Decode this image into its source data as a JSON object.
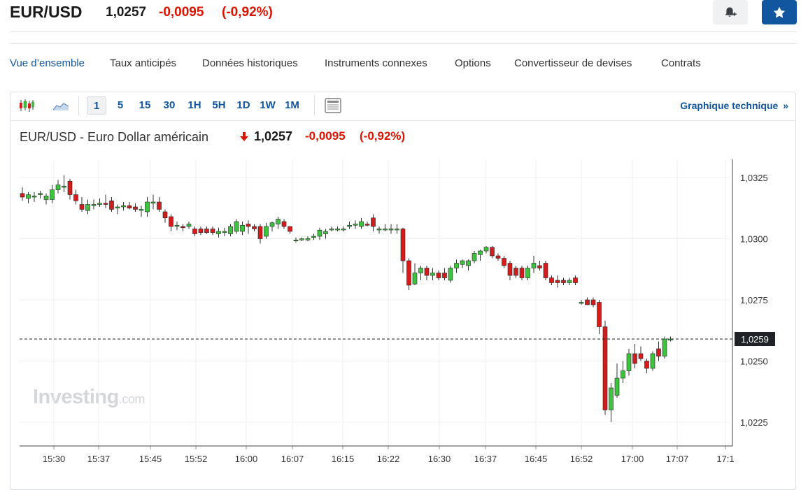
{
  "header": {
    "pair": "EUR/USD",
    "last": "1,0257",
    "change": "-0,0095",
    "change_pct": "(-0,92%)",
    "alert_icon": "bell-plus-icon",
    "watchlist_icon": "star-icon"
  },
  "tabs": [
    "Vue d’ensemble",
    "Taux anticipés",
    "Données historiques",
    "Instruments connexes",
    "Options",
    "Convertisseur de devises",
    "Contrats"
  ],
  "toolbar": {
    "candles_icon": "candlestick-icon",
    "area_icon": "area-chart-icon",
    "timeframes": [
      "1",
      "5",
      "15",
      "30",
      "1H",
      "5H",
      "1D",
      "1W",
      "1M"
    ],
    "active_timeframe": "1",
    "table_icon": "table-view-icon",
    "tech_link": "Graphique technique",
    "tech_link_chevron": "»"
  },
  "chart_header": {
    "title": "EUR/USD - Euro Dollar américain",
    "last": "1,0257",
    "change": "-0,0095",
    "change_pct": "(-0,92%)",
    "arrow_icon": "down-arrow-icon"
  },
  "watermark": {
    "brand": "Investing",
    "suffix": ".com"
  },
  "colors": {
    "up": "#3ec33e",
    "down": "#d51c1c",
    "accent": "#1256a0",
    "negative_text": "#d91400"
  },
  "chart_data": {
    "type": "candlestick",
    "title": "EUR/USD - Euro Dollar américain",
    "interval": "1 minute",
    "x_tick_labels": [
      "15:30",
      "15:37",
      "15:45",
      "15:52",
      "16:00",
      "16:07",
      "16:15",
      "16:22",
      "16:30",
      "16:37",
      "16:45",
      "16:52",
      "17:00",
      "17:07",
      "17:1"
    ],
    "y_tick_labels": [
      "1,0325",
      "1,0300",
      "1,0275",
      "1,0250",
      "1,0225"
    ],
    "ylim": [
      1.0215,
      1.0335
    ],
    "current_price_label": "1,0259",
    "current_price": 1.0259,
    "grid": true,
    "candles": [
      {
        "t": "15:25",
        "o": 1.03185,
        "h": 1.0321,
        "l": 1.03155,
        "c": 1.0317
      },
      {
        "t": "15:26",
        "o": 1.03165,
        "h": 1.0319,
        "l": 1.03145,
        "c": 1.0318
      },
      {
        "t": "15:27",
        "o": 1.0317,
        "h": 1.0319,
        "l": 1.0315,
        "c": 1.03175
      },
      {
        "t": "15:28",
        "o": 1.0318,
        "h": 1.03195,
        "l": 1.03165,
        "c": 1.03185
      },
      {
        "t": "15:29",
        "o": 1.0316,
        "h": 1.03185,
        "l": 1.0314,
        "c": 1.03175
      },
      {
        "t": "15:30",
        "o": 1.0316,
        "h": 1.0322,
        "l": 1.03145,
        "c": 1.032
      },
      {
        "t": "15:31",
        "o": 1.032,
        "h": 1.0324,
        "l": 1.03185,
        "c": 1.0322
      },
      {
        "t": "15:32",
        "o": 1.0321,
        "h": 1.0326,
        "l": 1.0319,
        "c": 1.03215
      },
      {
        "t": "15:33",
        "o": 1.03235,
        "h": 1.03245,
        "l": 1.0316,
        "c": 1.0318
      },
      {
        "t": "15:34",
        "o": 1.0318,
        "h": 1.032,
        "l": 1.0314,
        "c": 1.03155
      },
      {
        "t": "15:35",
        "o": 1.0314,
        "h": 1.0317,
        "l": 1.0311,
        "c": 1.0312
      },
      {
        "t": "15:36",
        "o": 1.03115,
        "h": 1.0316,
        "l": 1.031,
        "c": 1.0314
      },
      {
        "t": "15:37",
        "o": 1.03135,
        "h": 1.0316,
        "l": 1.0312,
        "c": 1.0314
      },
      {
        "t": "15:38",
        "o": 1.0314,
        "h": 1.03165,
        "l": 1.0313,
        "c": 1.03145
      },
      {
        "t": "15:39",
        "o": 1.03145,
        "h": 1.0318,
        "l": 1.03125,
        "c": 1.0314
      },
      {
        "t": "15:40",
        "o": 1.03155,
        "h": 1.0317,
        "l": 1.0311,
        "c": 1.0312
      },
      {
        "t": "15:41",
        "o": 1.03125,
        "h": 1.0314,
        "l": 1.031,
        "c": 1.0313
      },
      {
        "t": "15:42",
        "o": 1.0313,
        "h": 1.0315,
        "l": 1.03115,
        "c": 1.03135
      },
      {
        "t": "15:43",
        "o": 1.03135,
        "h": 1.0315,
        "l": 1.0312,
        "c": 1.03125
      },
      {
        "t": "15:44",
        "o": 1.0313,
        "h": 1.03145,
        "l": 1.0311,
        "c": 1.0312
      },
      {
        "t": "15:45",
        "o": 1.0312,
        "h": 1.03135,
        "l": 1.0309,
        "c": 1.0312
      },
      {
        "t": "15:46",
        "o": 1.0311,
        "h": 1.0317,
        "l": 1.0309,
        "c": 1.0315
      },
      {
        "t": "15:47",
        "o": 1.03145,
        "h": 1.0318,
        "l": 1.0312,
        "c": 1.0315
      },
      {
        "t": "15:48",
        "o": 1.0315,
        "h": 1.0317,
        "l": 1.0311,
        "c": 1.0312
      },
      {
        "t": "15:49",
        "o": 1.0311,
        "h": 1.0312,
        "l": 1.03065,
        "c": 1.03085
      },
      {
        "t": "15:50",
        "o": 1.0309,
        "h": 1.031,
        "l": 1.0303,
        "c": 1.0305
      },
      {
        "t": "15:51",
        "o": 1.03055,
        "h": 1.0307,
        "l": 1.03035,
        "c": 1.03055
      },
      {
        "t": "15:52",
        "o": 1.0305,
        "h": 1.0306,
        "l": 1.0303,
        "c": 1.03045
      },
      {
        "t": "15:53",
        "o": 1.0305,
        "h": 1.0307,
        "l": 1.0304,
        "c": 1.0306
      },
      {
        "t": "15:54",
        "o": 1.0304,
        "h": 1.0305,
        "l": 1.0301,
        "c": 1.0302
      },
      {
        "t": "15:55",
        "o": 1.0304,
        "h": 1.0305,
        "l": 1.03015,
        "c": 1.03025
      },
      {
        "t": "15:56",
        "o": 1.0304,
        "h": 1.0305,
        "l": 1.0302,
        "c": 1.03025
      },
      {
        "t": "15:57",
        "o": 1.0304,
        "h": 1.0305,
        "l": 1.03015,
        "c": 1.03025
      },
      {
        "t": "15:58",
        "o": 1.0302,
        "h": 1.03045,
        "l": 1.03005,
        "c": 1.0303
      },
      {
        "t": "15:59",
        "o": 1.03025,
        "h": 1.03045,
        "l": 1.0301,
        "c": 1.0303
      },
      {
        "t": "16:00",
        "o": 1.0302,
        "h": 1.0306,
        "l": 1.0301,
        "c": 1.0305
      },
      {
        "t": "16:01",
        "o": 1.0303,
        "h": 1.0308,
        "l": 1.0302,
        "c": 1.0307
      },
      {
        "t": "16:02",
        "o": 1.0303,
        "h": 1.0307,
        "l": 1.03015,
        "c": 1.03055
      },
      {
        "t": "16:03",
        "o": 1.0306,
        "h": 1.03075,
        "l": 1.0302,
        "c": 1.0305
      },
      {
        "t": "16:04",
        "o": 1.0305,
        "h": 1.0306,
        "l": 1.0303,
        "c": 1.0304
      },
      {
        "t": "16:05",
        "o": 1.0305,
        "h": 1.0306,
        "l": 1.0298,
        "c": 1.03
      },
      {
        "t": "16:06",
        "o": 1.0301,
        "h": 1.03065,
        "l": 1.03,
        "c": 1.0305
      },
      {
        "t": "16:07",
        "o": 1.0305,
        "h": 1.0307,
        "l": 1.0303,
        "c": 1.03065
      },
      {
        "t": "16:08",
        "o": 1.0306,
        "h": 1.0309,
        "l": 1.0304,
        "c": 1.0308
      },
      {
        "t": "16:09",
        "o": 1.0307,
        "h": 1.0308,
        "l": 1.0304,
        "c": 1.0305
      },
      {
        "t": "16:10",
        "o": 1.0305,
        "h": 1.0305,
        "l": 1.0302,
        "c": 1.0303
      },
      {
        "t": "16:11",
        "o": 1.02995,
        "h": 1.03005,
        "l": 1.02985,
        "c": 1.02995
      },
      {
        "t": "16:12",
        "o": 1.02995,
        "h": 1.03005,
        "l": 1.0299,
        "c": 1.03
      },
      {
        "t": "16:13",
        "o": 1.02995,
        "h": 1.0301,
        "l": 1.0299,
        "c": 1.03
      },
      {
        "t": "16:14",
        "o": 1.03005,
        "h": 1.0302,
        "l": 1.02995,
        "c": 1.0301
      },
      {
        "t": "16:15",
        "o": 1.0301,
        "h": 1.03045,
        "l": 1.02995,
        "c": 1.03035
      },
      {
        "t": "16:16",
        "o": 1.0302,
        "h": 1.0304,
        "l": 1.03,
        "c": 1.0303
      },
      {
        "t": "16:17",
        "o": 1.0304,
        "h": 1.0305,
        "l": 1.0303,
        "c": 1.0304
      },
      {
        "t": "16:18",
        "o": 1.0304,
        "h": 1.0305,
        "l": 1.0303,
        "c": 1.0304
      },
      {
        "t": "16:19",
        "o": 1.0304,
        "h": 1.0305,
        "l": 1.0303,
        "c": 1.0304
      },
      {
        "t": "16:20",
        "o": 1.0305,
        "h": 1.0307,
        "l": 1.0304,
        "c": 1.03055
      },
      {
        "t": "16:21",
        "o": 1.03055,
        "h": 1.03075,
        "l": 1.0304,
        "c": 1.0306
      },
      {
        "t": "16:22",
        "o": 1.0305,
        "h": 1.03085,
        "l": 1.0304,
        "c": 1.0307
      },
      {
        "t": "16:23",
        "o": 1.0306,
        "h": 1.0307,
        "l": 1.0305,
        "c": 1.03055
      },
      {
        "t": "16:24",
        "o": 1.03085,
        "h": 1.031,
        "l": 1.0303,
        "c": 1.0305
      },
      {
        "t": "16:25",
        "o": 1.0304,
        "h": 1.0305,
        "l": 1.0302,
        "c": 1.0304
      },
      {
        "t": "16:26",
        "o": 1.0304,
        "h": 1.0306,
        "l": 1.0303,
        "c": 1.0304
      },
      {
        "t": "16:27",
        "o": 1.0304,
        "h": 1.0306,
        "l": 1.0302,
        "c": 1.0304
      },
      {
        "t": "16:28",
        "o": 1.0304,
        "h": 1.0306,
        "l": 1.0302,
        "c": 1.0304
      },
      {
        "t": "16:29",
        "o": 1.0304,
        "h": 1.03045,
        "l": 1.0286,
        "c": 1.0291
      },
      {
        "t": "16:30",
        "o": 1.0291,
        "h": 1.0292,
        "l": 1.0279,
        "c": 1.0281
      },
      {
        "t": "16:31",
        "o": 1.02815,
        "h": 1.029,
        "l": 1.0281,
        "c": 1.0286
      },
      {
        "t": "16:32",
        "o": 1.0286,
        "h": 1.0289,
        "l": 1.0283,
        "c": 1.0288
      },
      {
        "t": "16:33",
        "o": 1.0288,
        "h": 1.0289,
        "l": 1.0283,
        "c": 1.0285
      },
      {
        "t": "16:34",
        "o": 1.0285,
        "h": 1.0288,
        "l": 1.0283,
        "c": 1.0286
      },
      {
        "t": "16:35",
        "o": 1.0286,
        "h": 1.0287,
        "l": 1.0283,
        "c": 1.0284
      },
      {
        "t": "16:36",
        "o": 1.0286,
        "h": 1.0288,
        "l": 1.0283,
        "c": 1.0284
      },
      {
        "t": "16:37",
        "o": 1.0283,
        "h": 1.0289,
        "l": 1.0282,
        "c": 1.0288
      },
      {
        "t": "16:38",
        "o": 1.0288,
        "h": 1.02915,
        "l": 1.0286,
        "c": 1.029
      },
      {
        "t": "16:39",
        "o": 1.02895,
        "h": 1.02915,
        "l": 1.0288,
        "c": 1.0291
      },
      {
        "t": "16:40",
        "o": 1.0289,
        "h": 1.02915,
        "l": 1.0287,
        "c": 1.0291
      },
      {
        "t": "16:41",
        "o": 1.0291,
        "h": 1.0295,
        "l": 1.029,
        "c": 1.0294
      },
      {
        "t": "16:42",
        "o": 1.02935,
        "h": 1.02955,
        "l": 1.0291,
        "c": 1.0295
      },
      {
        "t": "16:43",
        "o": 1.0295,
        "h": 1.0297,
        "l": 1.0294,
        "c": 1.02965
      },
      {
        "t": "16:44",
        "o": 1.02965,
        "h": 1.0297,
        "l": 1.0292,
        "c": 1.0293
      },
      {
        "t": "16:45",
        "o": 1.0293,
        "h": 1.0294,
        "l": 1.0291,
        "c": 1.0292
      },
      {
        "t": "16:46",
        "o": 1.0292,
        "h": 1.0293,
        "l": 1.0288,
        "c": 1.0289
      },
      {
        "t": "16:47",
        "o": 1.029,
        "h": 1.0291,
        "l": 1.0283,
        "c": 1.0285
      },
      {
        "t": "16:48",
        "o": 1.0288,
        "h": 1.0289,
        "l": 1.0284,
        "c": 1.0285
      },
      {
        "t": "16:49",
        "o": 1.0288,
        "h": 1.0289,
        "l": 1.0283,
        "c": 1.0284
      },
      {
        "t": "16:50",
        "o": 1.0284,
        "h": 1.0289,
        "l": 1.0283,
        "c": 1.0288
      },
      {
        "t": "16:51",
        "o": 1.0288,
        "h": 1.0293,
        "l": 1.0286,
        "c": 1.029
      },
      {
        "t": "16:52",
        "o": 1.0289,
        "h": 1.0291,
        "l": 1.0287,
        "c": 1.0288
      },
      {
        "t": "16:53",
        "o": 1.029,
        "h": 1.0291,
        "l": 1.0283,
        "c": 1.0284
      },
      {
        "t": "16:54",
        "o": 1.0284,
        "h": 1.0285,
        "l": 1.0281,
        "c": 1.0282
      },
      {
        "t": "16:55",
        "o": 1.0283,
        "h": 1.0285,
        "l": 1.028,
        "c": 1.0282
      },
      {
        "t": "16:56",
        "o": 1.0283,
        "h": 1.0284,
        "l": 1.0281,
        "c": 1.0282
      },
      {
        "t": "16:57",
        "o": 1.0282,
        "h": 1.0284,
        "l": 1.0281,
        "c": 1.0283
      },
      {
        "t": "16:58",
        "o": 1.0284,
        "h": 1.0285,
        "l": 1.0281,
        "c": 1.0282
      },
      {
        "t": "16:59",
        "o": 1.0274,
        "h": 1.0275,
        "l": 1.0273,
        "c": 1.0274
      },
      {
        "t": "17:00",
        "o": 1.0275,
        "h": 1.0276,
        "l": 1.0273,
        "c": 1.0273
      },
      {
        "t": "17:01",
        "o": 1.0275,
        "h": 1.0276,
        "l": 1.0272,
        "c": 1.0273
      },
      {
        "t": "17:02",
        "o": 1.0274,
        "h": 1.0275,
        "l": 1.0261,
        "c": 1.0264
      },
      {
        "t": "17:03",
        "o": 1.0264,
        "h": 1.02665,
        "l": 1.0228,
        "c": 1.023
      },
      {
        "t": "17:04",
        "o": 1.023,
        "h": 1.0241,
        "l": 1.0225,
        "c": 1.0239
      },
      {
        "t": "17:05",
        "o": 1.0236,
        "h": 1.0249,
        "l": 1.0235,
        "c": 1.0243
      },
      {
        "t": "17:06",
        "o": 1.0243,
        "h": 1.025,
        "l": 1.0241,
        "c": 1.0246
      },
      {
        "t": "17:07",
        "o": 1.0246,
        "h": 1.0255,
        "l": 1.0244,
        "c": 1.0253
      },
      {
        "t": "17:08",
        "o": 1.0253,
        "h": 1.0257,
        "l": 1.0247,
        "c": 1.0249
      },
      {
        "t": "17:09",
        "o": 1.0253,
        "h": 1.0256,
        "l": 1.025,
        "c": 1.0251
      },
      {
        "t": "17:10",
        "o": 1.025,
        "h": 1.0251,
        "l": 1.0245,
        "c": 1.0247
      },
      {
        "t": "17:11",
        "o": 1.0247,
        "h": 1.0254,
        "l": 1.0246,
        "c": 1.0253
      },
      {
        "t": "17:12",
        "o": 1.0255,
        "h": 1.0258,
        "l": 1.025,
        "c": 1.0252
      },
      {
        "t": "17:13",
        "o": 1.0252,
        "h": 1.026,
        "l": 1.0251,
        "c": 1.0259
      },
      {
        "t": "17:14",
        "o": 1.0259,
        "h": 1.026,
        "l": 1.0258,
        "c": 1.0259
      }
    ]
  }
}
